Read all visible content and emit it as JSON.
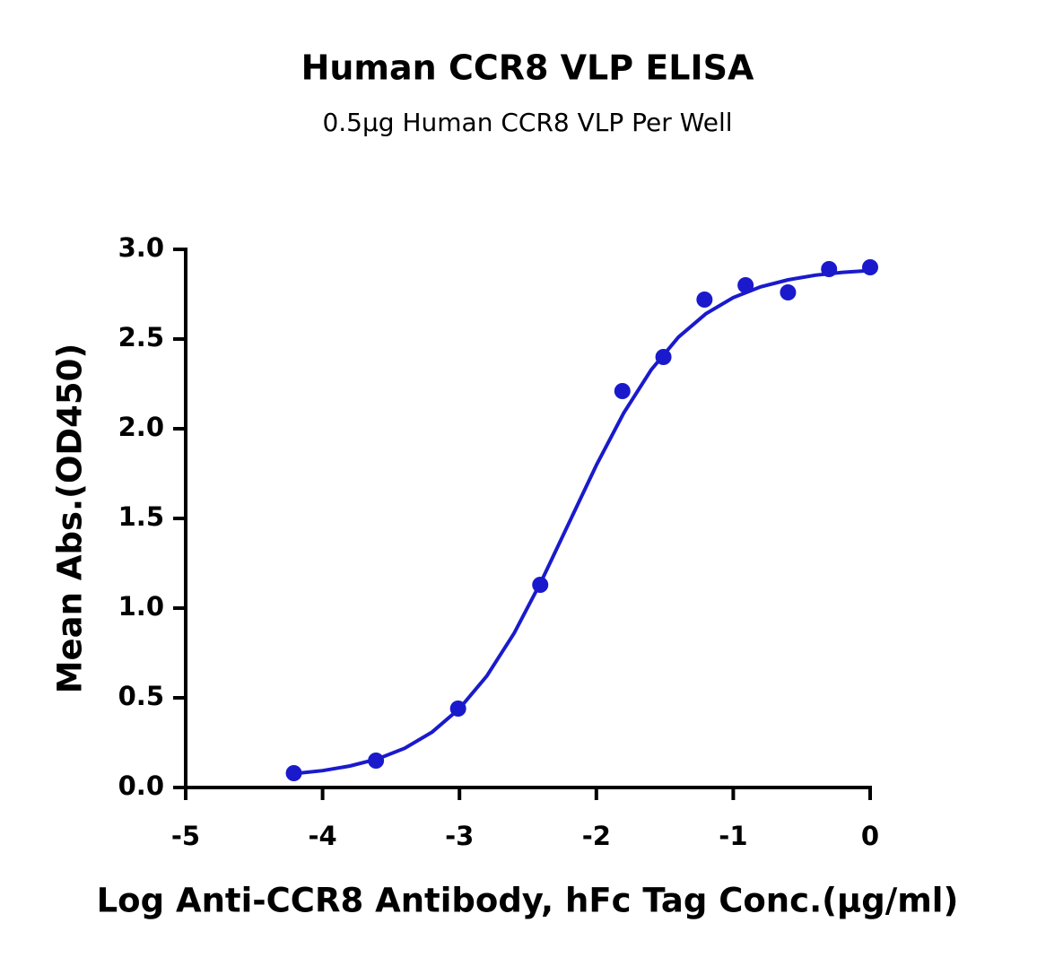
{
  "chart_data": {
    "type": "scatter",
    "title": "Human CCR8 VLP ELISA",
    "subtitle": "0.5µg Human CCR8 VLP Per Well",
    "x_label": "Log Anti-CCR8 Antibody, hFc Tag Conc.(µg/ml)",
    "y_label": "Mean Abs.(OD450)",
    "xlim": [
      -5,
      0
    ],
    "xticks": [
      -5,
      -4,
      -3,
      -2,
      -1,
      0
    ],
    "ylim": [
      0,
      3
    ],
    "yticks": [
      {
        "value": 0,
        "label": "0.0"
      },
      {
        "value": 0.5,
        "label": "0.5"
      },
      {
        "value": 1,
        "label": "1.0"
      },
      {
        "value": 1.5,
        "label": "1.5"
      },
      {
        "value": 2,
        "label": "2.0"
      },
      {
        "value": 2.5,
        "label": "2.5"
      },
      {
        "value": 3,
        "label": "3.0"
      }
    ],
    "series": [
      {
        "type": "scatter",
        "color": "#1a1acc",
        "x": [
          -4.21,
          -3.61,
          -3.01,
          -2.41,
          -1.81,
          -1.51,
          -1.21,
          -0.91,
          -0.6,
          -0.3,
          0
        ],
        "values": [
          0.08,
          0.15,
          0.44,
          1.13,
          2.21,
          2.4,
          2.72,
          2.8,
          2.76,
          2.89,
          2.9
        ]
      },
      {
        "type": "line",
        "color": "#1a1acc",
        "x": [
          -4.2,
          -4.0,
          -3.8,
          -3.6,
          -3.4,
          -3.2,
          -3.0,
          -2.8,
          -2.6,
          -2.4,
          -2.2,
          -2.0,
          -1.8,
          -1.6,
          -1.4,
          -1.2,
          -1.0,
          -0.8,
          -0.6,
          -0.4,
          -0.2,
          0
        ],
        "values": [
          0.078,
          0.094,
          0.12,
          0.159,
          0.219,
          0.309,
          0.44,
          0.622,
          0.861,
          1.153,
          1.475,
          1.797,
          2.088,
          2.328,
          2.511,
          2.641,
          2.731,
          2.791,
          2.83,
          2.856,
          2.872,
          2.882
        ]
      }
    ]
  }
}
